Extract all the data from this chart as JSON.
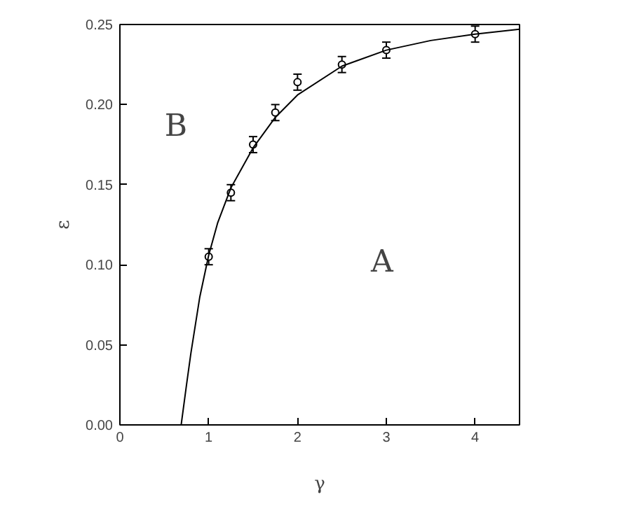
{
  "chart_data": {
    "type": "scatter",
    "xlabel": "γ",
    "ylabel": "ε",
    "xlim": [
      0,
      4.5
    ],
    "xticks": [
      0,
      1,
      2,
      3,
      4
    ],
    "ylim": [
      0,
      0.25
    ],
    "yticks": [
      {
        "value": 0,
        "label": "0.00"
      },
      {
        "value": 0.05,
        "label": "0.05"
      },
      {
        "value": 0.1,
        "label": "0.10"
      },
      {
        "value": 0.15,
        "label": "0.15"
      },
      {
        "value": 0.2,
        "label": "0.20"
      },
      {
        "value": 0.25,
        "label": "0.25"
      }
    ],
    "grid": false,
    "series": [
      {
        "color": "#000000",
        "marker": "circle",
        "x": [
          1,
          1.25,
          1.5,
          1.75,
          2,
          2.5,
          3,
          4
        ],
        "values": [
          0.105,
          0.145,
          0.175,
          0.195,
          0.214,
          0.225,
          0.234,
          0.244
        ],
        "errors": [
          0.005,
          0.005,
          0.005,
          0.005,
          0.005,
          0.005,
          0.005,
          0.005
        ]
      },
      {
        "type": "line",
        "color": "#000000",
        "x": [
          0.69,
          0.75,
          0.8,
          0.9,
          1.0,
          1.1,
          1.25,
          1.5,
          1.75,
          2.0,
          2.5,
          3.0,
          3.5,
          4.0,
          4.5
        ],
        "values": [
          0.0,
          0.025,
          0.045,
          0.08,
          0.106,
          0.126,
          0.148,
          0.173,
          0.192,
          0.206,
          0.224,
          0.234,
          0.24,
          0.244,
          0.247
        ]
      }
    ],
    "annotations": [
      "B",
      "A"
    ]
  }
}
